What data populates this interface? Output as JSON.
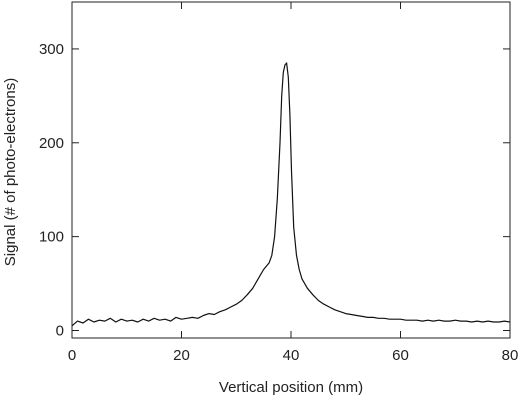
{
  "chart_data": {
    "type": "line",
    "xlabel": "Vertical position (mm)",
    "ylabel": "Signal (# of photo-electrons)",
    "xlim": [
      0,
      80
    ],
    "ylim": [
      -8,
      350
    ],
    "x_ticks": [
      0,
      20,
      40,
      60,
      80
    ],
    "y_ticks": [
      0,
      100,
      200,
      300
    ],
    "grid": false,
    "legend": "none",
    "line_color": "#111111",
    "series": [
      {
        "x": [
          0.0,
          1.0,
          2.0,
          3.0,
          4.0,
          5.0,
          6.0,
          7.0,
          8.0,
          9.0,
          10.0,
          11.0,
          12.0,
          13.0,
          14.0,
          15.0,
          16.0,
          17.0,
          18.0,
          19.0,
          20.0,
          21.0,
          22.0,
          23.0,
          24.0,
          25.0,
          26.0,
          27.0,
          28.0,
          29.0,
          30.0,
          31.0,
          32.0,
          33.0,
          34.0,
          35.0,
          36.0,
          36.5,
          37.0,
          37.5,
          38.0,
          38.3,
          38.6,
          38.9,
          39.2,
          39.5,
          39.8,
          40.1,
          40.5,
          41.0,
          41.5,
          42.0,
          43.0,
          44.0,
          45.0,
          46.0,
          47.0,
          48.0,
          49.0,
          50.0,
          51.0,
          52.0,
          53.0,
          54.0,
          55.0,
          56.0,
          57.0,
          58.0,
          59.0,
          60.0,
          61.0,
          62.0,
          63.0,
          64.0,
          65.0,
          66.0,
          67.0,
          68.0,
          69.0,
          70.0,
          71.0,
          72.0,
          73.0,
          74.0,
          75.0,
          76.0,
          77.0,
          78.0,
          79.0,
          80.0
        ],
        "y": [
          5,
          10,
          8,
          12,
          9,
          11,
          10,
          13,
          9,
          12,
          10,
          11,
          9,
          12,
          10,
          13,
          11,
          12,
          10,
          14,
          12,
          13,
          14,
          13,
          16,
          18,
          17,
          20,
          22,
          25,
          28,
          32,
          38,
          45,
          55,
          65,
          72,
          80,
          100,
          140,
          200,
          250,
          275,
          283,
          285,
          270,
          230,
          170,
          110,
          80,
          65,
          55,
          45,
          38,
          32,
          28,
          25,
          22,
          20,
          18,
          17,
          16,
          15,
          14,
          14,
          13,
          13,
          12,
          12,
          12,
          11,
          11,
          11,
          10,
          11,
          10,
          11,
          10,
          10,
          11,
          10,
          10,
          9,
          10,
          9,
          10,
          9,
          9,
          10,
          9
        ]
      }
    ]
  }
}
